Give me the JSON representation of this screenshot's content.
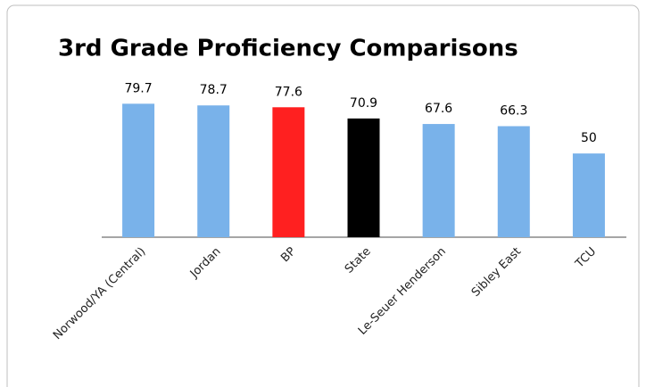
{
  "chart_data": {
    "type": "bar",
    "title": "3rd Grade Proficiency Comparisons",
    "categories": [
      "Norwood/YA (Central)",
      "Jordan",
      "BP",
      "State",
      "Le-Seuer Henderson",
      "Sibley East",
      "TCU"
    ],
    "values": [
      79.7,
      78.7,
      77.6,
      70.9,
      67.6,
      66.3,
      50
    ],
    "colors": [
      "#79b2ea",
      "#79b2ea",
      "#ff2020",
      "#000000",
      "#79b2ea",
      "#79b2ea",
      "#79b2ea"
    ],
    "ylim": [
      0,
      90
    ]
  }
}
